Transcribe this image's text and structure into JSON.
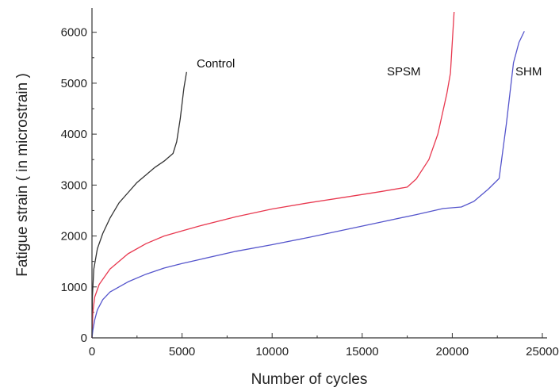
{
  "chart_data": {
    "type": "line",
    "title": "",
    "xlabel": "Number of cycles",
    "ylabel": "Fatigue strain ( in microstrain )",
    "xlim": [
      0,
      25000
    ],
    "ylim": [
      0,
      6400
    ],
    "x_ticks": [
      "0",
      "5000",
      "10000",
      "15000",
      "20000",
      "25000"
    ],
    "y_ticks": [
      "0",
      "1000",
      "2000",
      "3000",
      "4000",
      "5000",
      "6000"
    ],
    "grid": false,
    "legend": "none",
    "series": [
      {
        "name": "Control",
        "color": "#333333",
        "points": [
          [
            0,
            0
          ],
          [
            20,
            800
          ],
          [
            100,
            1350
          ],
          [
            300,
            1750
          ],
          [
            600,
            2050
          ],
          [
            1000,
            2350
          ],
          [
            1500,
            2650
          ],
          [
            2000,
            2850
          ],
          [
            2500,
            3050
          ],
          [
            3000,
            3200
          ],
          [
            3500,
            3350
          ],
          [
            4000,
            3470
          ],
          [
            4500,
            3620
          ],
          [
            4700,
            3850
          ],
          [
            4900,
            4300
          ],
          [
            5100,
            4900
          ],
          [
            5250,
            5220
          ]
        ]
      },
      {
        "name": "SPSM",
        "color": "#e8384f",
        "points": [
          [
            0,
            0
          ],
          [
            50,
            500
          ],
          [
            150,
            800
          ],
          [
            400,
            1050
          ],
          [
            1000,
            1350
          ],
          [
            2000,
            1650
          ],
          [
            3000,
            1850
          ],
          [
            4000,
            2000
          ],
          [
            5000,
            2100
          ],
          [
            6000,
            2200
          ],
          [
            8000,
            2380
          ],
          [
            10000,
            2530
          ],
          [
            12000,
            2650
          ],
          [
            14000,
            2760
          ],
          [
            16000,
            2870
          ],
          [
            17500,
            2960
          ],
          [
            18000,
            3120
          ],
          [
            18700,
            3500
          ],
          [
            19200,
            4000
          ],
          [
            19700,
            4800
          ],
          [
            19900,
            5200
          ],
          [
            20000,
            5800
          ],
          [
            20100,
            6400
          ]
        ]
      },
      {
        "name": "SHM",
        "color": "#5555cc",
        "points": [
          [
            0,
            0
          ],
          [
            50,
            150
          ],
          [
            150,
            350
          ],
          [
            300,
            550
          ],
          [
            600,
            750
          ],
          [
            1000,
            900
          ],
          [
            2000,
            1100
          ],
          [
            3000,
            1250
          ],
          [
            4000,
            1370
          ],
          [
            5000,
            1460
          ],
          [
            6000,
            1540
          ],
          [
            8000,
            1700
          ],
          [
            10000,
            1830
          ],
          [
            12000,
            1970
          ],
          [
            14000,
            2120
          ],
          [
            16000,
            2270
          ],
          [
            18000,
            2420
          ],
          [
            19500,
            2540
          ],
          [
            20500,
            2570
          ],
          [
            21200,
            2680
          ],
          [
            22000,
            2920
          ],
          [
            22600,
            3130
          ],
          [
            23000,
            4200
          ],
          [
            23400,
            5400
          ],
          [
            23700,
            5800
          ],
          [
            24000,
            6020
          ]
        ]
      }
    ],
    "labels": {
      "control": "Control",
      "spsm": "SPSM",
      "shm": "SHM"
    }
  }
}
